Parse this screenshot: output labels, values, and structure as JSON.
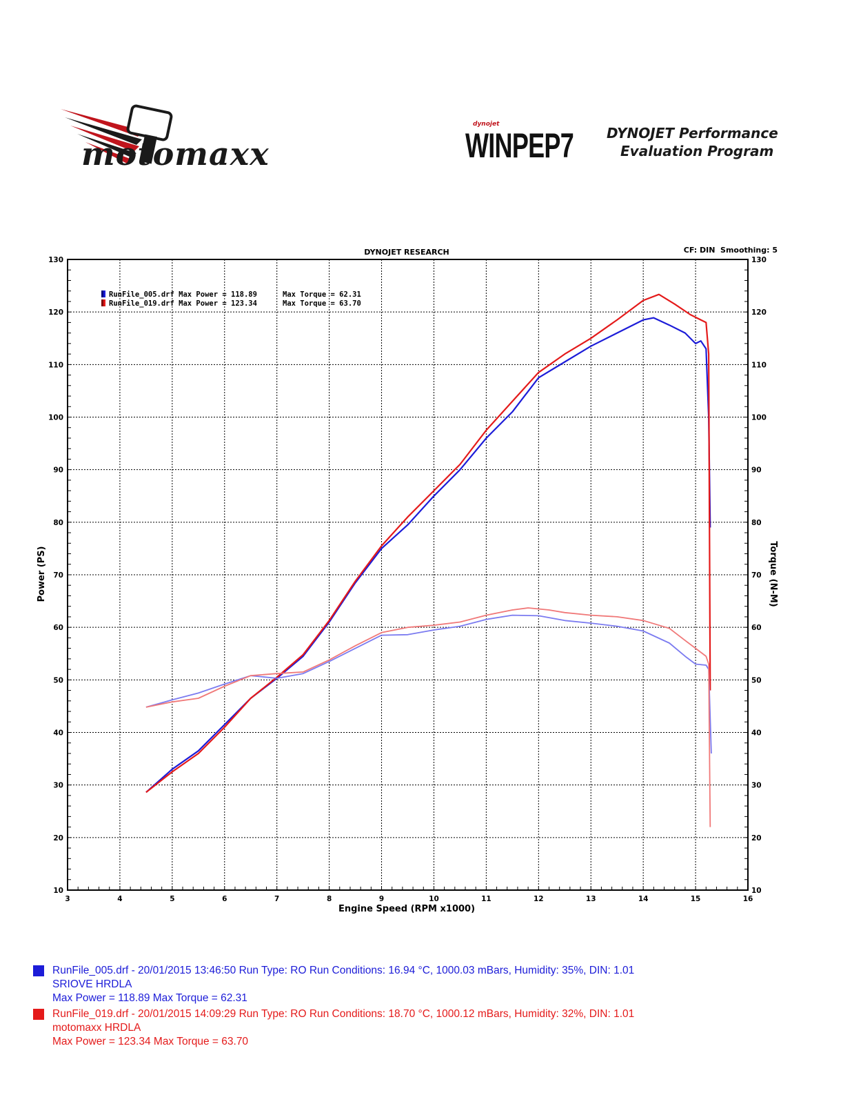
{
  "header": {
    "left_logo_text": "motomaxx",
    "right_logo_brand": "WINPEP7",
    "right_logo_small": "dynojet",
    "right_logo_line1": "DYNOJET Performance",
    "right_logo_line2": "Evaluation Program"
  },
  "colors": {
    "run1": "#1c1cd8",
    "run1_torque": "#7b7bf0",
    "run2": "#e41a1a",
    "run2_torque": "#f07878",
    "grid": "#000000"
  },
  "chart_data": {
    "type": "line",
    "title": "DYNOJET RESEARCH",
    "corner_note": "CF: DIN  Smoothing: 5",
    "xlabel": "Engine Speed (RPM x1000)",
    "ylabel": "Power (PS)",
    "y2label": "Torque (N-M)",
    "xlim": [
      3,
      16
    ],
    "ylim": [
      10,
      130
    ],
    "y2lim": [
      10,
      130
    ],
    "x_ticks": [
      3,
      4,
      5,
      6,
      7,
      8,
      9,
      10,
      11,
      12,
      13,
      14,
      15,
      16
    ],
    "y_ticks": [
      10,
      20,
      30,
      40,
      50,
      60,
      70,
      80,
      90,
      100,
      110,
      120,
      130
    ],
    "grid": true,
    "legend_position": "top-left",
    "legend": [
      {
        "label": "RunFile_005.drf Max Power = 118.89",
        "torque_label": "Max Torque = 62.31"
      },
      {
        "label": "RunFile_019.drf Max Power = 123.34",
        "torque_label": "Max Torque = 63.70"
      }
    ],
    "series": [
      {
        "name": "RunFile_005.drf",
        "measure": "power",
        "axis": "left",
        "points": [
          [
            4.5,
            28.6
          ],
          [
            5,
            33
          ],
          [
            5.5,
            36.5
          ],
          [
            6,
            41.5
          ],
          [
            6.5,
            46.5
          ],
          [
            7,
            50.3
          ],
          [
            7.5,
            54.5
          ],
          [
            8,
            61
          ],
          [
            8.5,
            68.5
          ],
          [
            9,
            75
          ],
          [
            9.5,
            79.5
          ],
          [
            10,
            85
          ],
          [
            10.5,
            90
          ],
          [
            11,
            96
          ],
          [
            11.5,
            101
          ],
          [
            12,
            107.5
          ],
          [
            12.5,
            110.5
          ],
          [
            13,
            113.5
          ],
          [
            13.5,
            116
          ],
          [
            14,
            118.5
          ],
          [
            14.2,
            118.89
          ],
          [
            14.5,
            117.5
          ],
          [
            14.8,
            116
          ],
          [
            15.0,
            114
          ],
          [
            15.1,
            114.5
          ],
          [
            15.2,
            113
          ],
          [
            15.25,
            100
          ],
          [
            15.28,
            79
          ]
        ]
      },
      {
        "name": "RunFile_019.drf",
        "measure": "power",
        "axis": "left",
        "points": [
          [
            4.5,
            28.6
          ],
          [
            5,
            32.5
          ],
          [
            5.5,
            36
          ],
          [
            6,
            41
          ],
          [
            6.5,
            46.5
          ],
          [
            7,
            50.5
          ],
          [
            7.5,
            54.8
          ],
          [
            8,
            61.3
          ],
          [
            8.5,
            68.8
          ],
          [
            9,
            75.5
          ],
          [
            9.5,
            81
          ],
          [
            10,
            86
          ],
          [
            10.5,
            91
          ],
          [
            11,
            97.5
          ],
          [
            11.5,
            103
          ],
          [
            12,
            108.5
          ],
          [
            12.5,
            112
          ],
          [
            13,
            115
          ],
          [
            13.5,
            118.5
          ],
          [
            14,
            122.2
          ],
          [
            14.3,
            123.34
          ],
          [
            14.6,
            121.5
          ],
          [
            14.9,
            119.5
          ],
          [
            15.1,
            118.5
          ],
          [
            15.2,
            118
          ],
          [
            15.25,
            112
          ],
          [
            15.28,
            48
          ]
        ]
      },
      {
        "name": "RunFile_005.drf",
        "measure": "torque",
        "axis": "right",
        "points": [
          [
            4.5,
            44.8
          ],
          [
            5,
            46.2
          ],
          [
            5.5,
            47.5
          ],
          [
            6,
            49.2
          ],
          [
            6.5,
            50.8
          ],
          [
            7,
            50.3
          ],
          [
            7.5,
            51.2
          ],
          [
            8,
            53.5
          ],
          [
            8.5,
            56
          ],
          [
            9,
            58.5
          ],
          [
            9.5,
            58.6
          ],
          [
            10,
            59.5
          ],
          [
            10.5,
            60.2
          ],
          [
            11,
            61.5
          ],
          [
            11.5,
            62.31
          ],
          [
            12,
            62.2
          ],
          [
            12.5,
            61.3
          ],
          [
            13,
            60.8
          ],
          [
            13.5,
            60.2
          ],
          [
            14,
            59.3
          ],
          [
            14.5,
            57
          ],
          [
            14.8,
            54.5
          ],
          [
            15.0,
            53
          ],
          [
            15.2,
            52.8
          ],
          [
            15.25,
            52
          ],
          [
            15.3,
            36
          ]
        ]
      },
      {
        "name": "RunFile_019.drf",
        "measure": "torque",
        "axis": "right",
        "points": [
          [
            4.5,
            44.8
          ],
          [
            5,
            45.8
          ],
          [
            5.5,
            46.5
          ],
          [
            6,
            48.8
          ],
          [
            6.5,
            50.8
          ],
          [
            7,
            51.2
          ],
          [
            7.5,
            51.5
          ],
          [
            8,
            53.8
          ],
          [
            8.5,
            56.5
          ],
          [
            9,
            59
          ],
          [
            9.5,
            60
          ],
          [
            10,
            60.4
          ],
          [
            10.5,
            61
          ],
          [
            11,
            62.3
          ],
          [
            11.5,
            63.3
          ],
          [
            11.8,
            63.7
          ],
          [
            12.2,
            63.3
          ],
          [
            12.5,
            62.8
          ],
          [
            13,
            62.3
          ],
          [
            13.5,
            62
          ],
          [
            14,
            61.3
          ],
          [
            14.5,
            59.8
          ],
          [
            14.8,
            57.5
          ],
          [
            15.0,
            56
          ],
          [
            15.2,
            54.5
          ],
          [
            15.25,
            53
          ],
          [
            15.28,
            22
          ]
        ]
      }
    ]
  },
  "footer": {
    "run1": {
      "line1": "RunFile_005.drf - 20/01/2015 13:46:50  Run Type: RO  Run Conditions: 16.94 °C, 1000.03 mBars,  Humidity:  35%, DIN: 1.01",
      "line2": "SRIOVE HRDLA",
      "line3": "Max Power = 118.89  Max Torque = 62.31"
    },
    "run2": {
      "line1": "RunFile_019.drf - 20/01/2015 14:09:29  Run Type: RO  Run Conditions: 18.70 °C, 1000.12 mBars,  Humidity:  32%, DIN: 1.01",
      "line2": "motomaxx HRDLA",
      "line3": "Max Power = 123.34  Max Torque = 63.70"
    }
  }
}
